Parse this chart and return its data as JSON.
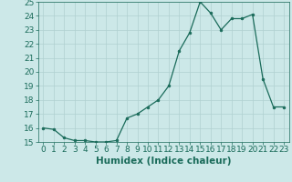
{
  "xlabel": "Humidex (Indice chaleur)",
  "x": [
    0,
    1,
    2,
    3,
    4,
    5,
    6,
    7,
    8,
    9,
    10,
    11,
    12,
    13,
    14,
    15,
    16,
    17,
    18,
    19,
    20,
    21,
    22,
    23
  ],
  "y": [
    16.0,
    15.9,
    15.3,
    15.1,
    15.1,
    15.0,
    15.0,
    15.1,
    16.7,
    17.0,
    17.5,
    18.0,
    19.0,
    21.5,
    22.8,
    25.0,
    24.2,
    23.0,
    23.8,
    23.8,
    24.1,
    19.5,
    17.5,
    17.5
  ],
  "ylim": [
    15,
    25
  ],
  "xlim": [
    -0.5,
    23.5
  ],
  "yticks": [
    15,
    16,
    17,
    18,
    19,
    20,
    21,
    22,
    23,
    24,
    25
  ],
  "xticks": [
    0,
    1,
    2,
    3,
    4,
    5,
    6,
    7,
    8,
    9,
    10,
    11,
    12,
    13,
    14,
    15,
    16,
    17,
    18,
    19,
    20,
    21,
    22,
    23
  ],
  "line_color": "#1a6b5a",
  "marker_color": "#1a6b5a",
  "bg_color": "#cce8e8",
  "grid_color": "#b0d0d0",
  "tick_fontsize": 6.5,
  "xlabel_fontsize": 7.5,
  "marker": "o",
  "marker_size": 2.0,
  "linewidth": 0.9
}
